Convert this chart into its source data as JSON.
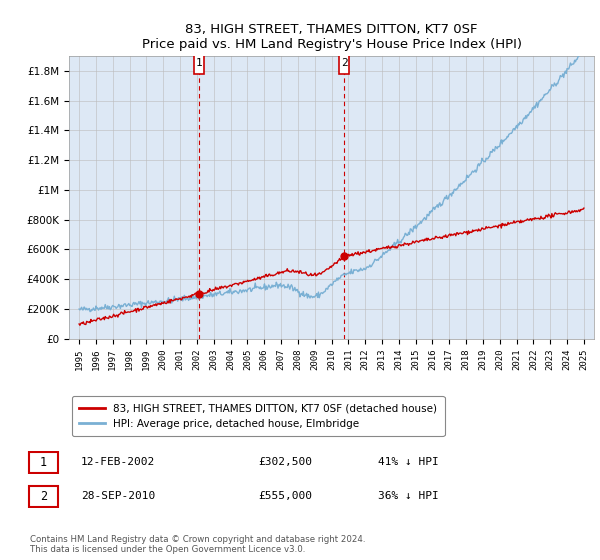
{
  "title": "83, HIGH STREET, THAMES DITTON, KT7 0SF",
  "subtitle": "Price paid vs. HM Land Registry's House Price Index (HPI)",
  "ylim": [
    0,
    1900000
  ],
  "yticks": [
    0,
    200000,
    400000,
    600000,
    800000,
    1000000,
    1200000,
    1400000,
    1600000,
    1800000
  ],
  "ytick_labels": [
    "£0",
    "£200K",
    "£400K",
    "£600K",
    "£800K",
    "£1M",
    "£1.2M",
    "£1.4M",
    "£1.6M",
    "£1.8M"
  ],
  "hpi_color": "#7ab0d4",
  "price_color": "#cc0000",
  "sale1_date": "12-FEB-2002",
  "sale1_price": 302500,
  "sale1_year": 2002.12,
  "sale2_date": "28-SEP-2010",
  "sale2_price": 555000,
  "sale2_year": 2010.75,
  "legend_line1": "83, HIGH STREET, THAMES DITTON, KT7 0SF (detached house)",
  "legend_line2": "HPI: Average price, detached house, Elmbridge",
  "footer": "Contains HM Land Registry data © Crown copyright and database right 2024.\nThis data is licensed under the Open Government Licence v3.0.",
  "bg_color": "#dde8f5",
  "grid_color": "#bbbbbb",
  "vline_color": "#cc0000",
  "box_color": "#cc0000"
}
